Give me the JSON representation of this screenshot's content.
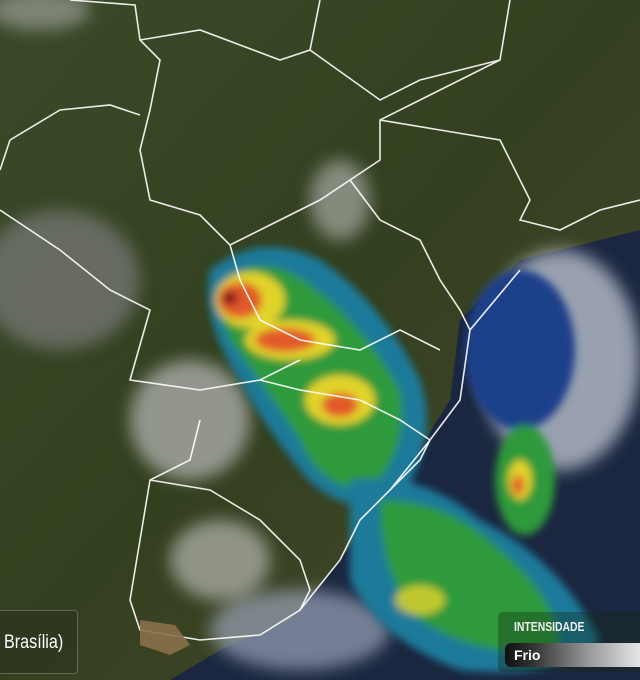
{
  "map": {
    "type": "satellite-weather-radar",
    "region": "South America",
    "colors": {
      "land": "#3b4526",
      "clouds": "#d8d8d8",
      "rain_light": "#2f9a3a",
      "rain_moderate": "#e2d32a",
      "rain_heavy": "#e25a2a",
      "rain_extreme": "#8a1a1a",
      "cold_tops": "#1a3f8a",
      "borders": "#ffffff"
    }
  },
  "timestamp": {
    "label": "Brasília)"
  },
  "legend": {
    "title": "INTENSIDADE",
    "low_label": "Frio"
  }
}
